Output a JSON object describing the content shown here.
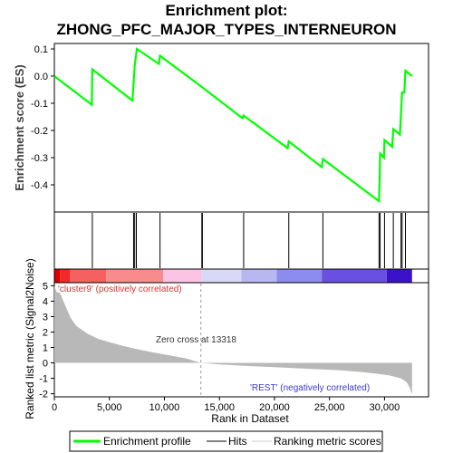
{
  "chart_data": {
    "type": "line",
    "title_line1": "Enrichment plot:",
    "title_line2": "ZHONG_PFC_MAJOR_TYPES_INTERNEURON",
    "es_panel": {
      "ylabel": "Enrichment score (ES)",
      "ylim": [
        -0.5,
        0.12
      ],
      "yticks": [
        0.1,
        0.0,
        -0.1,
        -0.2,
        -0.3,
        -0.4
      ],
      "ytick_labels": [
        "0.1",
        "0.0",
        "-0.1",
        "-0.2",
        "-0.3",
        "-0.4"
      ],
      "grid": false,
      "series": [
        {
          "name": "Enrichment profile",
          "color": "#00ff00",
          "points": [
            [
              0,
              0.0
            ],
            [
              3400,
              -0.105
            ],
            [
              3450,
              0.025
            ],
            [
              7100,
              -0.09
            ],
            [
              7200,
              -0.025
            ],
            [
              7300,
              0.04
            ],
            [
              7500,
              0.1
            ],
            [
              9500,
              0.045
            ],
            [
              9600,
              0.075
            ],
            [
              13400,
              -0.04
            ],
            [
              17100,
              -0.155
            ],
            [
              17200,
              -0.145
            ],
            [
              21200,
              -0.265
            ],
            [
              21300,
              -0.24
            ],
            [
              24300,
              -0.335
            ],
            [
              24400,
              -0.305
            ],
            [
              29500,
              -0.46
            ],
            [
              29550,
              -0.4
            ],
            [
              29600,
              -0.285
            ],
            [
              29950,
              -0.3
            ],
            [
              30000,
              -0.235
            ],
            [
              30700,
              -0.26
            ],
            [
              30800,
              -0.195
            ],
            [
              31400,
              -0.215
            ],
            [
              31500,
              -0.14
            ],
            [
              31600,
              -0.06
            ],
            [
              31800,
              -0.06
            ],
            [
              31900,
              0.02
            ],
            [
              32500,
              0.0
            ]
          ]
        }
      ]
    },
    "hits_panel": {
      "hit_positions": [
        3450,
        7200,
        7300,
        7450,
        9600,
        13400,
        13450,
        17200,
        21300,
        24400,
        29500,
        29600,
        30000,
        30800,
        31500,
        31600,
        31900
      ]
    },
    "rank_colorbar": {
      "segments": [
        {
          "from": 0,
          "to": 500,
          "color": "#e00000"
        },
        {
          "from": 500,
          "to": 1400,
          "color": "#ef2828"
        },
        {
          "from": 1400,
          "to": 4700,
          "color": "#f56060"
        },
        {
          "from": 4700,
          "to": 9900,
          "color": "#f88c8c"
        },
        {
          "from": 9900,
          "to": 13400,
          "color": "#fbc4e4"
        },
        {
          "from": 13400,
          "to": 17000,
          "color": "#d8d8f8"
        },
        {
          "from": 17000,
          "to": 20200,
          "color": "#b8b8f0"
        },
        {
          "from": 20200,
          "to": 24300,
          "color": "#8c8ced"
        },
        {
          "from": 24300,
          "to": 30200,
          "color": "#6a50e0"
        },
        {
          "from": 30200,
          "to": 32500,
          "color": "#3a12c8"
        }
      ]
    },
    "metric_panel": {
      "ylabel": "Ranked list metric (Signal2Noise)",
      "xlabel": "Rank in Dataset",
      "ylim": [
        -2.2,
        5.2
      ],
      "yticks": [
        5,
        4,
        3,
        2,
        1,
        0,
        -1,
        -2
      ],
      "ytick_labels": [
        "5",
        "4",
        "3",
        "2",
        "1",
        "0",
        "-1",
        "-2"
      ],
      "xlim": [
        0,
        34000
      ],
      "xticks": [
        0,
        5000,
        10000,
        15000,
        20000,
        25000,
        30000
      ],
      "xtick_labels": [
        "0",
        "5,000",
        "10,000",
        "15,000",
        "20,000",
        "25,000",
        "30,000"
      ],
      "fill_color": "#b8b8b8",
      "profile": [
        [
          0,
          5.0
        ],
        [
          200,
          4.6
        ],
        [
          500,
          4.55
        ],
        [
          1000,
          3.7
        ],
        [
          1500,
          2.9
        ],
        [
          2000,
          2.4
        ],
        [
          3000,
          1.9
        ],
        [
          4000,
          1.55
        ],
        [
          5000,
          1.35
        ],
        [
          6000,
          1.15
        ],
        [
          7000,
          0.97
        ],
        [
          8000,
          0.82
        ],
        [
          9000,
          0.68
        ],
        [
          10000,
          0.55
        ],
        [
          11000,
          0.42
        ],
        [
          12000,
          0.28
        ],
        [
          13318,
          0.0
        ],
        [
          15000,
          -0.1
        ],
        [
          17000,
          -0.18
        ],
        [
          20000,
          -0.28
        ],
        [
          23000,
          -0.38
        ],
        [
          26000,
          -0.48
        ],
        [
          28000,
          -0.6
        ],
        [
          29500,
          -0.72
        ],
        [
          30500,
          -0.82
        ],
        [
          31500,
          -1.0
        ],
        [
          32000,
          -1.25
        ],
        [
          32300,
          -1.6
        ],
        [
          32500,
          -2.05
        ]
      ],
      "annotations": {
        "positive": "'cluster9' (positively correlated)",
        "negative": "'REST' (negatively correlated)",
        "zero_cross": "Zero cross at 13318"
      },
      "zero_cross": 13318
    },
    "legend": {
      "items": [
        "Enrichment profile",
        "Hits",
        "Ranking metric scores"
      ],
      "colors": [
        "#00ff00",
        "#000000",
        "#cccccc"
      ]
    }
  }
}
